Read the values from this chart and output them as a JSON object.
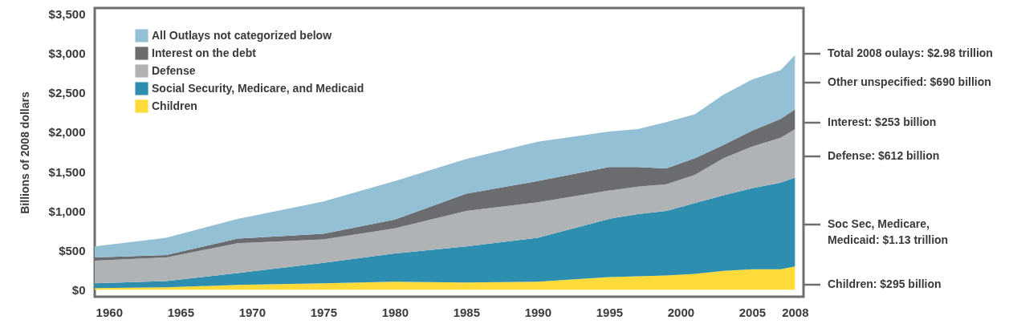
{
  "chart_data": {
    "type": "area",
    "stacked": true,
    "ylabel": "Billions of 2008 dollars",
    "x": [
      1959,
      1964,
      1969,
      1975,
      1980,
      1985,
      1990,
      1995,
      1997,
      1999,
      2001,
      2003,
      2005,
      2007,
      2008
    ],
    "xlim": [
      1959,
      2008.6
    ],
    "xticks": [
      1960,
      1965,
      1970,
      1975,
      1980,
      1985,
      1990,
      1995,
      2000,
      2005,
      2008
    ],
    "ylim": [
      -90,
      3580
    ],
    "yticks": [
      {
        "value": 0,
        "label": "$0"
      },
      {
        "value": 500,
        "label": "$500"
      },
      {
        "value": 1000,
        "label": "$1,000"
      },
      {
        "value": 1500,
        "label": "$1,500"
      },
      {
        "value": 2000,
        "label": "$2,000"
      },
      {
        "value": 2500,
        "label": "$2,500"
      },
      {
        "value": 3000,
        "label": "$3,000"
      },
      {
        "value": 3500,
        "label": "$3,500"
      }
    ],
    "series": [
      {
        "name": "Children",
        "color": "#fedb38",
        "values": [
          20,
          30,
          60,
          80,
          100,
          90,
          100,
          160,
          170,
          180,
          200,
          240,
          260,
          260,
          295
        ]
      },
      {
        "name": "Social Security, Medicare, and Medicaid",
        "color": "#2e8eb0",
        "values": [
          60,
          80,
          150,
          260,
          360,
          460,
          560,
          740,
          790,
          820,
          900,
          960,
          1030,
          1100,
          1130
        ]
      },
      {
        "name": "Defense",
        "color": "#b0b3b6",
        "values": [
          290,
          300,
          380,
          300,
          320,
          450,
          450,
          360,
          350,
          340,
          360,
          470,
          530,
          570,
          612
        ]
      },
      {
        "name": "Interest on the debt",
        "color": "#6b6c70",
        "values": [
          40,
          30,
          60,
          70,
          110,
          220,
          270,
          300,
          250,
          200,
          210,
          170,
          200,
          240,
          253
        ]
      },
      {
        "name": "All Outlays not categorized below",
        "color": "#93c0d4",
        "values": [
          140,
          220,
          250,
          410,
          490,
          440,
          500,
          450,
          480,
          590,
          560,
          640,
          650,
          620,
          690
        ]
      }
    ],
    "legend": "top left",
    "annotations": [
      "Total 2008 oulays: $2.98 trillion",
      "Other unspecified: $690 billion",
      "Interest: $253 billion",
      "Defense: $612 billion",
      "Soc Sec, Medicare,\nMedicaid: $1.13 trillion",
      "Children: $295 billion"
    ]
  }
}
